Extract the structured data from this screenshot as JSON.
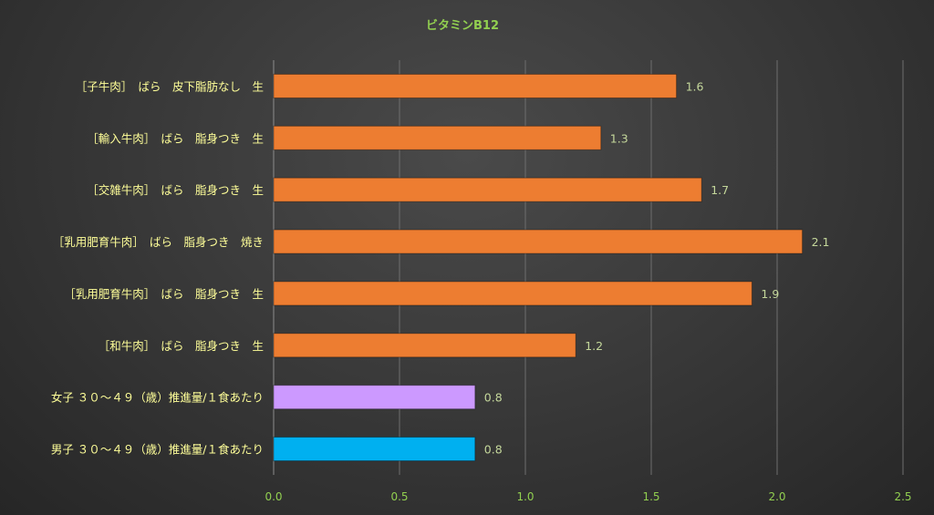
{
  "chart_data": {
    "type": "bar",
    "orientation": "horizontal",
    "title": "ビタミンB12",
    "categories": [
      "［子牛肉］　ばら　皮下脂肪なし　生",
      "［輸入牛肉］　ばら　脂身つき　生",
      "［交雑牛肉］　ばら　脂身つき　生",
      "［乳用肥育牛肉］　ばら　脂身つき　焼き",
      "［乳用肥育牛肉］　ばら　脂身つき　生",
      "［和牛肉］　ばら　脂身つき　生",
      "女子 ３０～４９（歳）推進量/１食あたり",
      "男子 ３０～４９（歳）推進量/１食あたり"
    ],
    "values": [
      1.6,
      1.3,
      1.7,
      2.1,
      1.9,
      1.2,
      0.8,
      0.8
    ],
    "value_labels": [
      "1.6",
      "1.3",
      "1.7",
      "2.1",
      "1.9",
      "1.2",
      "0.8",
      "0.8"
    ],
    "bar_colors": [
      "#ed7d31",
      "#ed7d31",
      "#ed7d31",
      "#ed7d31",
      "#ed7d31",
      "#ed7d31",
      "#cc99ff",
      "#00b0f0"
    ],
    "xlim": [
      0,
      2.5
    ],
    "xticks": [
      0,
      0.5,
      1.0,
      1.5,
      2.0,
      2.5
    ],
    "xtick_labels": [
      "0.0",
      "0.5",
      "1.0",
      "1.5",
      "2.0",
      "2.5"
    ],
    "xlabel": "",
    "ylabel": "",
    "grid": "vertical",
    "legend": "none"
  },
  "colors": {
    "title": "#92d050",
    "category_label": "#ffff99",
    "value_label": "#c4d79b",
    "tick_label": "#92d050",
    "gridline": "#6e6e6e",
    "axis_line": "#8c8c8c"
  }
}
